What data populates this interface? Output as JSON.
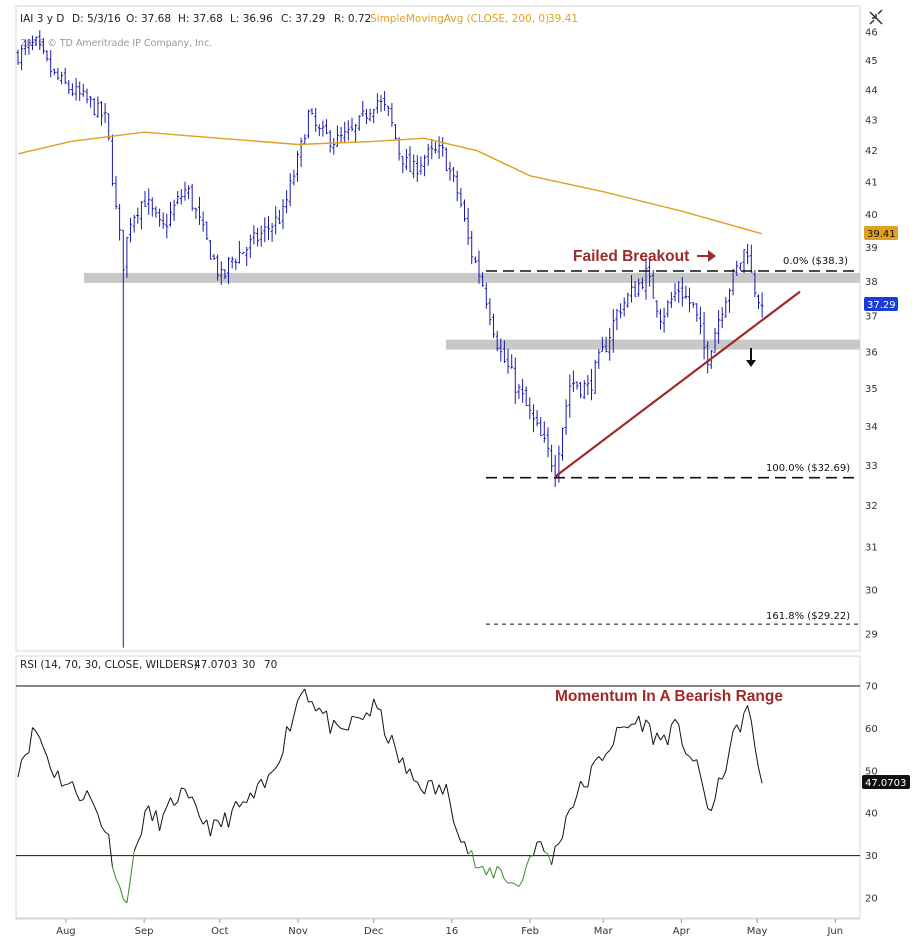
{
  "header": {
    "symbol": "IAI 3 y D",
    "date": "D: 5/3/16",
    "open": "O: 37.68",
    "high": "H: 37.68",
    "low": "L: 36.96",
    "close": "C: 37.29",
    "range": "R: 0.72",
    "sma_label": "SimpleMovingAvg (CLOSE, 200, 0)",
    "sma_value": "39.41",
    "copyright": "2016 © TD Ameritrade IP Company, Inc."
  },
  "toolbar": {
    "icon": "collapse-arrows-icon"
  },
  "rsi_header": {
    "label": "RSI (14, 70, 30, CLOSE, WILDERS)",
    "value": "47.0703",
    "over": "30",
    "under": "70"
  },
  "badges": {
    "sma": "39.41",
    "price": "37.29",
    "rsi": "47.0703"
  },
  "annotations": {
    "failed_breakout": "Failed Breakout",
    "momentum": "Momentum In A Bearish Range",
    "fib0": "0.0%  ($38.3)",
    "fib100": "100.0%  ($32.69)",
    "fib161": "161.8%  ($29.22)"
  },
  "colors": {
    "bars": "#1a1aa8",
    "sma": "#e0a020",
    "annotation": "#9e2a2a",
    "zone": "#c8c8c8",
    "rsi_line": "#111111",
    "rsi_oversold": "#3a8a2a",
    "sma_badge": "#e0a020",
    "price_badge": "#1a3bd6"
  },
  "chart_data": [
    {
      "type": "bar",
      "subtype": "ohlc",
      "title": "IAI 3 y D",
      "x_ticks": [
        "Aug",
        "Sep",
        "Oct",
        "Nov",
        "Dec",
        "16",
        "Feb",
        "Mar",
        "Apr",
        "May",
        "Jun"
      ],
      "y_ticks": [
        29,
        30,
        31,
        32,
        33,
        34,
        35,
        36,
        37,
        38,
        39,
        40,
        41,
        42,
        43,
        44,
        45,
        46
      ],
      "ylim": [
        28.6,
        46.2
      ],
      "close_path": [
        [
          "2015-07-13",
          45.2
        ],
        [
          "2015-07-20",
          45.6
        ],
        [
          "2015-07-27",
          44.5
        ],
        [
          "2015-08-03",
          44.0
        ],
        [
          "2015-08-10",
          43.6
        ],
        [
          "2015-08-17",
          43.0
        ],
        [
          "2015-08-21",
          40.0
        ],
        [
          "2015-08-24",
          38.4
        ],
        [
          "2015-08-26",
          39.8
        ],
        [
          "2015-09-01",
          40.5
        ],
        [
          "2015-09-08",
          39.5
        ],
        [
          "2015-09-15",
          40.5
        ],
        [
          "2015-09-18",
          40.8
        ],
        [
          "2015-09-25",
          39.3
        ],
        [
          "2015-10-02",
          38.0
        ],
        [
          "2015-10-05",
          38.6
        ],
        [
          "2015-10-12",
          39.0
        ],
        [
          "2015-10-19",
          39.5
        ],
        [
          "2015-10-26",
          40.0
        ],
        [
          "2015-11-02",
          42.0
        ],
        [
          "2015-11-05",
          43.2
        ],
        [
          "2015-11-09",
          42.6
        ],
        [
          "2015-11-16",
          42.3
        ],
        [
          "2015-11-23",
          42.6
        ],
        [
          "2015-12-02",
          43.7
        ],
        [
          "2015-12-07",
          43.2
        ],
        [
          "2015-12-11",
          42.0
        ],
        [
          "2015-12-16",
          41.3
        ],
        [
          "2015-12-21",
          41.8
        ],
        [
          "2015-12-28",
          42.0
        ],
        [
          "2016-01-04",
          40.5
        ],
        [
          "2016-01-08",
          39.0
        ],
        [
          "2016-01-13",
          38.0
        ],
        [
          "2016-01-20",
          36.0
        ],
        [
          "2016-01-27",
          35.0
        ],
        [
          "2016-02-03",
          34.0
        ],
        [
          "2016-02-08",
          33.3
        ],
        [
          "2016-02-11",
          33.0
        ],
        [
          "2016-02-17",
          35.2
        ],
        [
          "2016-02-24",
          35.0
        ],
        [
          "2016-03-01",
          36.0
        ],
        [
          "2016-03-07",
          37.2
        ],
        [
          "2016-03-14",
          37.8
        ],
        [
          "2016-03-18",
          38.2
        ],
        [
          "2016-03-24",
          37.0
        ],
        [
          "2016-03-31",
          37.8
        ],
        [
          "2016-04-06",
          37.2
        ],
        [
          "2016-04-11",
          35.8
        ],
        [
          "2016-04-18",
          37.5
        ],
        [
          "2016-04-25",
          38.7
        ],
        [
          "2016-04-27",
          39.1
        ],
        [
          "2016-04-29",
          38.0
        ],
        [
          "2016-05-03",
          37.29
        ]
      ],
      "lines": [
        {
          "name": "SimpleMovingAvg (CLOSE, 200, 0)",
          "points": [
            [
              "2015-07-13",
              41.9
            ],
            [
              "2015-08-03",
              42.3
            ],
            [
              "2015-09-01",
              42.6
            ],
            [
              "2015-10-01",
              42.4
            ],
            [
              "2015-11-01",
              42.2
            ],
            [
              "2015-12-01",
              42.3
            ],
            [
              "2015-12-21",
              42.4
            ],
            [
              "2016-01-11",
              42.0
            ],
            [
              "2016-02-01",
              41.2
            ],
            [
              "2016-03-01",
              40.7
            ],
            [
              "2016-04-01",
              40.1
            ],
            [
              "2016-05-03",
              39.41
            ]
          ]
        }
      ],
      "levels": {
        "fib_0": 38.3,
        "fib_100": 32.69,
        "fib_161_8": 29.22
      },
      "support_zones": [
        38.1,
        36.2
      ],
      "trendline": [
        [
          "2016-02-11",
          32.72
        ],
        [
          "2016-05-18",
          37.7
        ]
      ],
      "last": 37.29
    },
    {
      "type": "line",
      "title": "RSI (14, 70, 30, CLOSE, WILDERS)",
      "y_ticks": [
        20,
        30,
        40,
        50,
        60,
        70
      ],
      "ylim": [
        15,
        73
      ],
      "overbought": 70,
      "oversold": 30,
      "points": [
        [
          "2015-07-13",
          51
        ],
        [
          "2015-07-20",
          60
        ],
        [
          "2015-07-27",
          50
        ],
        [
          "2015-08-03",
          46
        ],
        [
          "2015-08-10",
          44
        ],
        [
          "2015-08-17",
          36
        ],
        [
          "2015-08-24",
          18
        ],
        [
          "2015-09-01",
          40
        ],
        [
          "2015-09-08",
          38
        ],
        [
          "2015-09-15",
          45
        ],
        [
          "2015-09-22",
          40
        ],
        [
          "2015-09-29",
          36
        ],
        [
          "2015-10-06",
          40
        ],
        [
          "2015-10-13",
          43
        ],
        [
          "2015-10-20",
          47
        ],
        [
          "2015-10-27",
          58
        ],
        [
          "2015-11-03",
          70
        ],
        [
          "2015-11-10",
          64
        ],
        [
          "2015-11-17",
          58
        ],
        [
          "2015-11-24",
          62
        ],
        [
          "2015-12-02",
          65
        ],
        [
          "2015-12-09",
          55
        ],
        [
          "2015-12-16",
          48
        ],
        [
          "2015-12-23",
          46
        ],
        [
          "2015-12-30",
          45
        ],
        [
          "2016-01-06",
          33
        ],
        [
          "2016-01-13",
          25
        ],
        [
          "2016-01-20",
          27
        ],
        [
          "2016-01-27",
          22
        ],
        [
          "2016-02-03",
          33
        ],
        [
          "2016-02-10",
          29
        ],
        [
          "2016-02-17",
          42
        ],
        [
          "2016-02-24",
          48
        ],
        [
          "2016-03-02",
          55
        ],
        [
          "2016-03-09",
          60
        ],
        [
          "2016-03-16",
          62
        ],
        [
          "2016-03-23",
          57
        ],
        [
          "2016-03-30",
          60
        ],
        [
          "2016-04-06",
          52
        ],
        [
          "2016-04-13",
          40
        ],
        [
          "2016-04-20",
          55
        ],
        [
          "2016-04-27",
          65
        ],
        [
          "2016-05-03",
          47.07
        ]
      ]
    }
  ]
}
